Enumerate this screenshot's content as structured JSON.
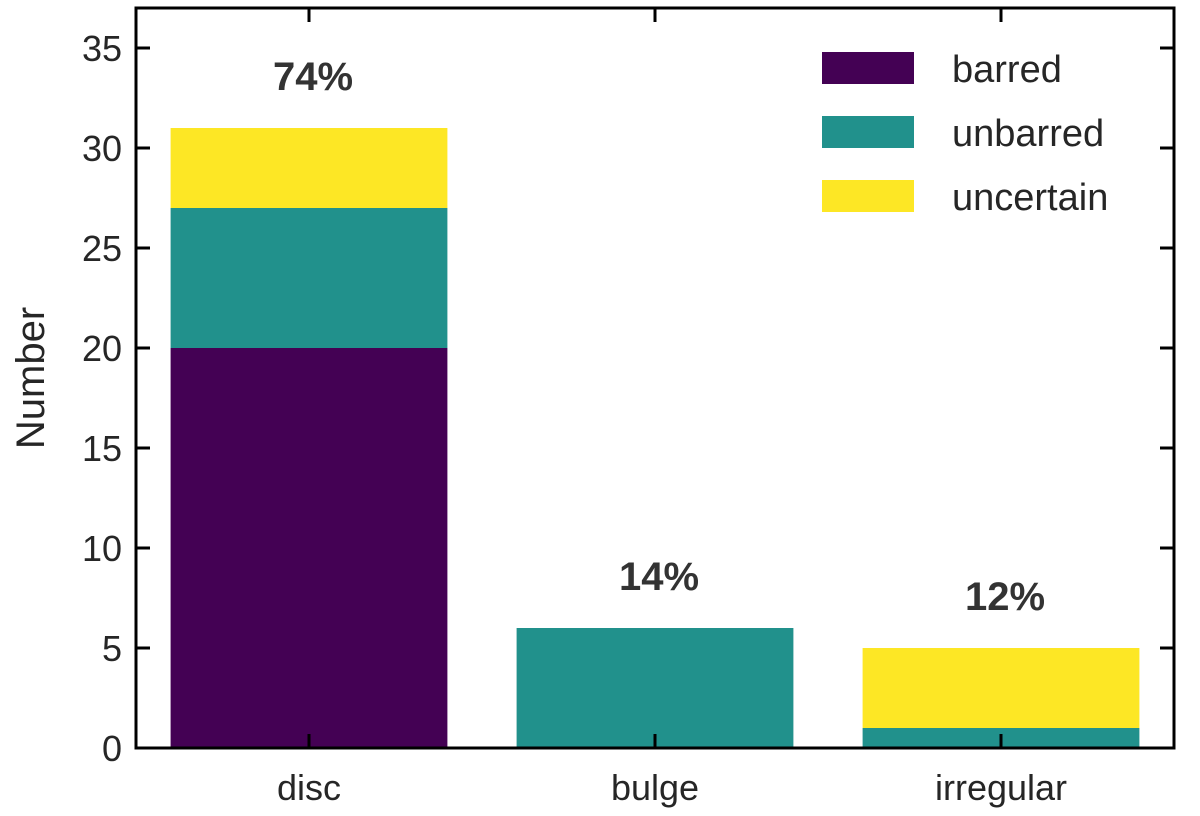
{
  "chart_data": {
    "type": "bar",
    "stacked": true,
    "categories": [
      "disc",
      "bulge",
      "irregular"
    ],
    "series": [
      {
        "name": "barred",
        "color": "#440154",
        "values": [
          20,
          0,
          0
        ]
      },
      {
        "name": "unbarred",
        "color": "#21918c",
        "values": [
          7,
          6,
          1
        ]
      },
      {
        "name": "uncertain",
        "color": "#fde725",
        "values": [
          4,
          0,
          4
        ]
      }
    ],
    "annotations": [
      "74%",
      "14%",
      "12%"
    ],
    "xlabel": "",
    "ylabel": "Number",
    "ylim": [
      0,
      37
    ],
    "yticks": [
      0,
      5,
      10,
      15,
      20,
      25,
      30,
      35
    ],
    "grid": false,
    "legend_position": "top-right"
  }
}
